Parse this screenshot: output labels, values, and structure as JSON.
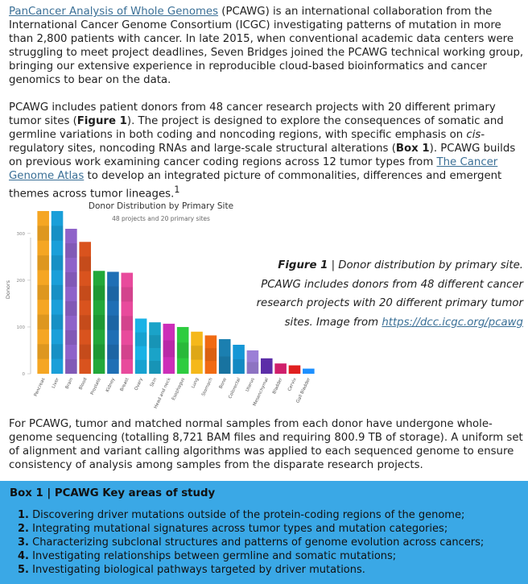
{
  "intro": {
    "link1": "PanCancer Analysis of Whole Genomes",
    "text1": " (PCAWG) is an international collaboration from the International Cancer Genome Consortium (ICGC) investigating patterns of mutation in more than 2,800 patients with cancer. In late 2015, when conventional academic data centers were struggling to meet project deadlines, Seven Bridges joined the PCAWG technical working group, bringing our extensive experience in reproducible cloud-based bioinformatics and cancer genomics to bear on the data."
  },
  "para2": {
    "t1": "PCAWG includes patient donors from 48 cancer research projects with 20 different primary tumor sites (",
    "b1": "Figure 1",
    "t2": "). The project is designed to explore the consequences of somatic and germline variations in both coding and noncoding regions, with specific emphasis on ",
    "i1": "cis",
    "t3": "-regulatory sites, noncoding RNAs and large-scale structural alterations (",
    "b2": "Box 1",
    "t4": "). PCAWG builds on previous work examining cancer coding regions across 12 tumor types from ",
    "link": "The Cancer Genome Atlas",
    "t5": " to develop an integrated picture of commonalities, differences and emergent themes across tumor lineages.",
    "sup": "1"
  },
  "caption": {
    "label": "Figure 1",
    "text": " | Donor distribution by primary site. PCAWG includes donors from 48 different cancer research projects with 20 different primary tumor sites. Image from ",
    "link": "https://dcc.icgc.org/pcawg"
  },
  "para3": "For PCAWG, tumor and matched normal samples from each donor have undergone whole-genome sequencing (totalling 8,721 BAM files and requiring 800.9 TB of storage). A uniform set of alignment and variant calling algorithms was applied to each sequenced genome to ensure consistency of analysis among samples from the disparate research projects.",
  "box": {
    "title": "Box 1 | PCAWG Key areas of study",
    "items": [
      {
        "num": "1.",
        "text": " Discovering driver mutations outside of the protein-coding regions of the genome;"
      },
      {
        "num": "2.",
        "text": " Integrating mutational signatures across tumor types and mutation categories;"
      },
      {
        "num": "3.",
        "text": " Characterizing subclonal structures and patterns of genome evolution across cancers;"
      },
      {
        "num": "4.",
        "text": " Investigating relationships between germline and somatic mutations;"
      },
      {
        "num": "5.",
        "text": " Investigating biological pathways targeted by driver mutations."
      }
    ]
  },
  "chart_data": {
    "type": "bar",
    "title": "Donor Distribution by Primary Site",
    "subtitle": "48 projects and 20 primary sites",
    "ylabel": "Donors",
    "ylim": [
      0,
      360
    ],
    "yticks": [
      "0",
      "100",
      "200",
      "300"
    ],
    "categories": [
      "Pancreas",
      "Liver",
      "Brain",
      "Blood",
      "Prostate",
      "Kidney",
      "Breast",
      "Ovary",
      "Skin",
      "Head and neck",
      "Esophagus",
      "Lung",
      "Stomach",
      "Bone",
      "Colorectal",
      "Uterus",
      "Mesenchymal",
      "Bladder",
      "Cervix",
      "Gall Bladder"
    ],
    "values": [
      348,
      348,
      310,
      282,
      220,
      218,
      216,
      118,
      110,
      107,
      100,
      90,
      82,
      74,
      62,
      50,
      33,
      22,
      18,
      11
    ],
    "colors": [
      "#f5a623",
      "#1a9fd9",
      "#8e62c9",
      "#d9531e",
      "#22a83a",
      "#1f6fb5",
      "#e84a9c",
      "#19b2e6",
      "#1aa3c8",
      "#cc2eb8",
      "#2ecc40",
      "#f5b81a",
      "#f06a12",
      "#1b7fb0",
      "#1597d6",
      "#9b7fd6",
      "#5c2ea8",
      "#d01f6b",
      "#e02020",
      "#1e90ff"
    ]
  }
}
